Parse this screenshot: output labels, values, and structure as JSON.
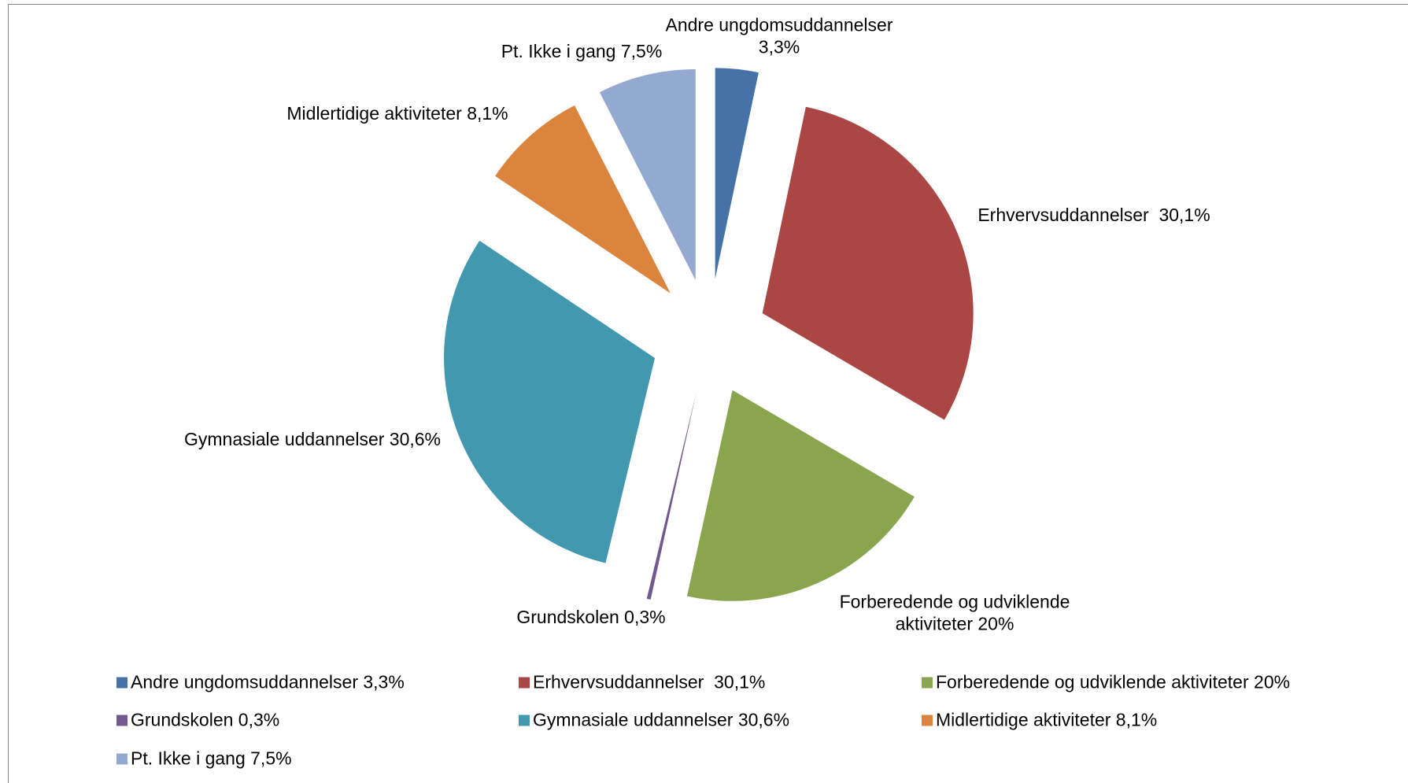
{
  "chart_data": {
    "type": "pie",
    "categories": [
      "Andre ungdomsuddannelser 3,3%",
      "Erhvervsuddannelser  30,1%",
      "Forberedende og udviklende aktiviteter 20%",
      "Grundskolen 0,3%",
      "Gymnasiale uddannelser 30,6%",
      "Midlertidige aktiviteter 8,1%",
      "Pt. Ikke i gang 7,5%"
    ],
    "values": [
      3.3,
      30.1,
      20,
      0.3,
      30.6,
      8.1,
      7.5
    ],
    "colors": [
      "#4672a8",
      "#aa4644",
      "#89a54e",
      "#71588f",
      "#4198af",
      "#db843d",
      "#93a9cf"
    ],
    "legend": "bottom"
  }
}
